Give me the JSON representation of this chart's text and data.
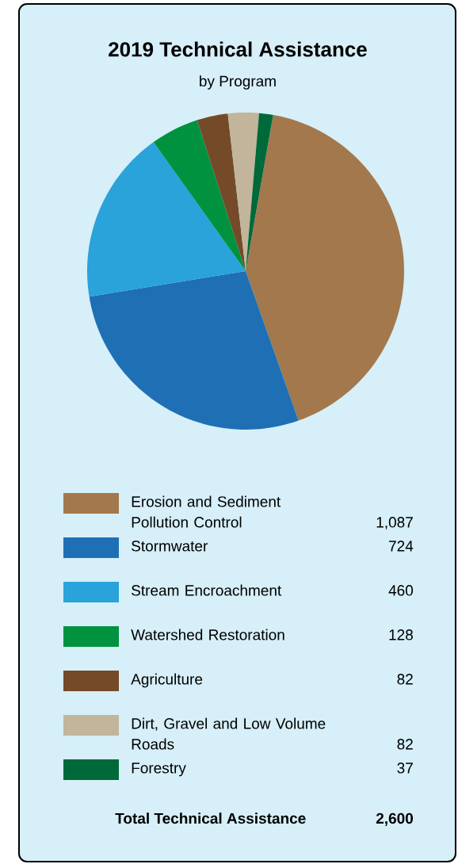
{
  "chart_data": {
    "type": "pie",
    "title": "2019 Technical Assistance",
    "subtitle": "by Program",
    "categories": [
      "Erosion and Sediment Pollution Control",
      "Stormwater",
      "Stream Encroachment",
      "Watershed Restoration",
      "Agriculture",
      "Dirt, Gravel and Low Volume Roads",
      "Forestry"
    ],
    "values": [
      1087,
      724,
      460,
      128,
      82,
      82,
      37
    ],
    "value_labels": [
      "1,087",
      "724",
      "460",
      "128",
      "82",
      "82",
      "37"
    ],
    "colors": [
      "#a3784c",
      "#1f6fb5",
      "#29a3da",
      "#00923f",
      "#744a28",
      "#c2b59b",
      "#00693a"
    ],
    "legend": "bottom",
    "annotations": [
      "Total Technical Assistance",
      "2,600"
    ]
  }
}
